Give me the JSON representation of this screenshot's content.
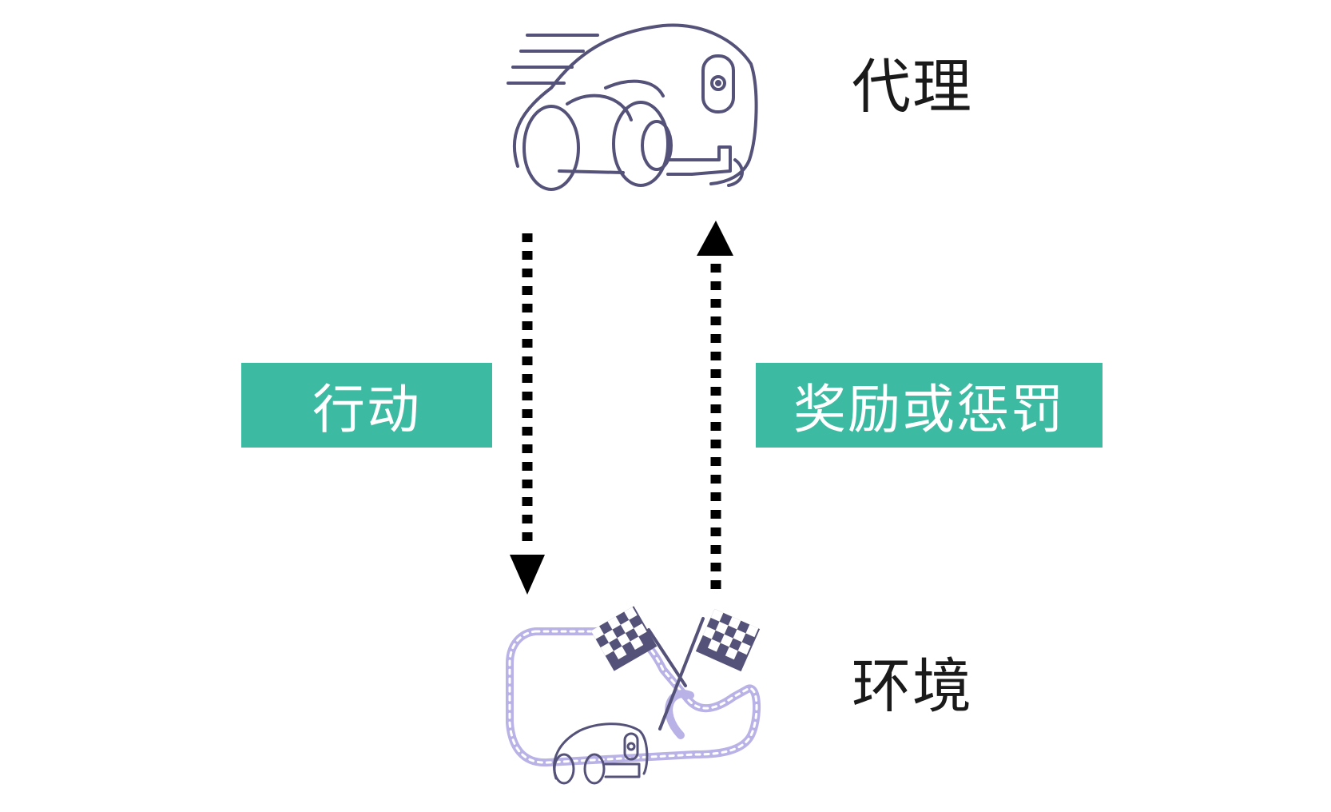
{
  "agent": {
    "label": "代理",
    "icon": "race-car-icon"
  },
  "environment": {
    "label": "环境",
    "icon": "race-track-icon"
  },
  "action": {
    "label": "行动"
  },
  "reward": {
    "label": "奖励或惩罚"
  },
  "colors": {
    "tag_background": "#3dbaa2",
    "tag_text": "#ffffff",
    "icon_stroke": "#55527a",
    "track_stroke": "#b9b2e6",
    "arrow": "#000000"
  }
}
